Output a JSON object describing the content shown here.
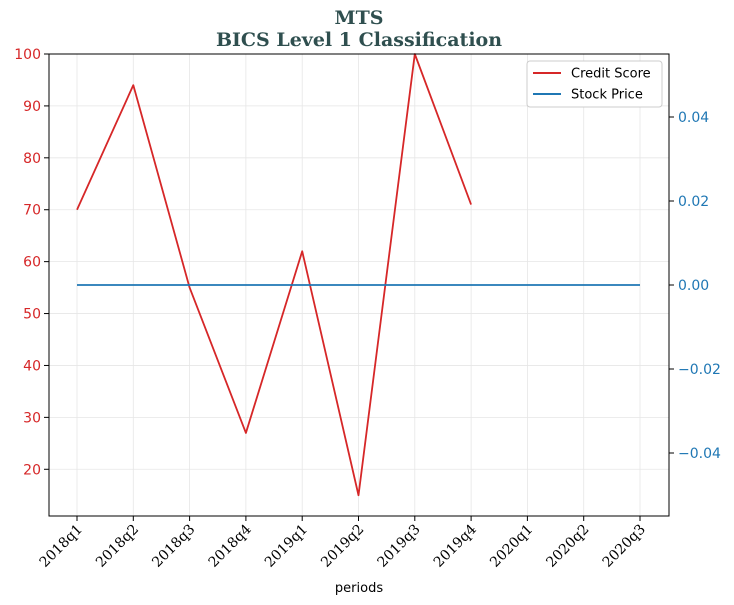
{
  "chart_data": {
    "type": "line",
    "title": "MTS",
    "subtitle": "BICS Level 1 Classification",
    "xlabel": "periods",
    "categories": [
      "2018q1",
      "2018q2",
      "2018q3",
      "2018q4",
      "2019q1",
      "2019q2",
      "2019q3",
      "2019q4",
      "2020q1",
      "2020q2",
      "2020q3"
    ],
    "series": [
      {
        "name": "Credit Score",
        "axis": "left",
        "color": "#d62728",
        "values": [
          70,
          94,
          55,
          27,
          62,
          15,
          100,
          71,
          null,
          null,
          null
        ]
      },
      {
        "name": "Stock Price",
        "axis": "right",
        "color": "#1f77b4",
        "values": [
          0,
          0,
          0,
          0,
          0,
          0,
          0,
          0,
          0,
          0,
          0
        ]
      }
    ],
    "left_axis": {
      "ylim": [
        11,
        100
      ],
      "ticks": [
        20,
        30,
        40,
        50,
        60,
        70,
        80,
        90,
        100
      ],
      "tick_labels": [
        "20",
        "30",
        "40",
        "50",
        "60",
        "70",
        "80",
        "90",
        "100"
      ],
      "color": "#d62728"
    },
    "right_axis": {
      "ylim": [
        -0.055,
        0.055
      ],
      "ticks": [
        -0.04,
        -0.02,
        0.0,
        0.02,
        0.04
      ],
      "tick_labels": [
        "−0.04",
        "−0.02",
        "0.00",
        "0.02",
        "0.04"
      ],
      "color": "#1f77b4"
    },
    "grid": true,
    "legend_position": "top-right"
  }
}
